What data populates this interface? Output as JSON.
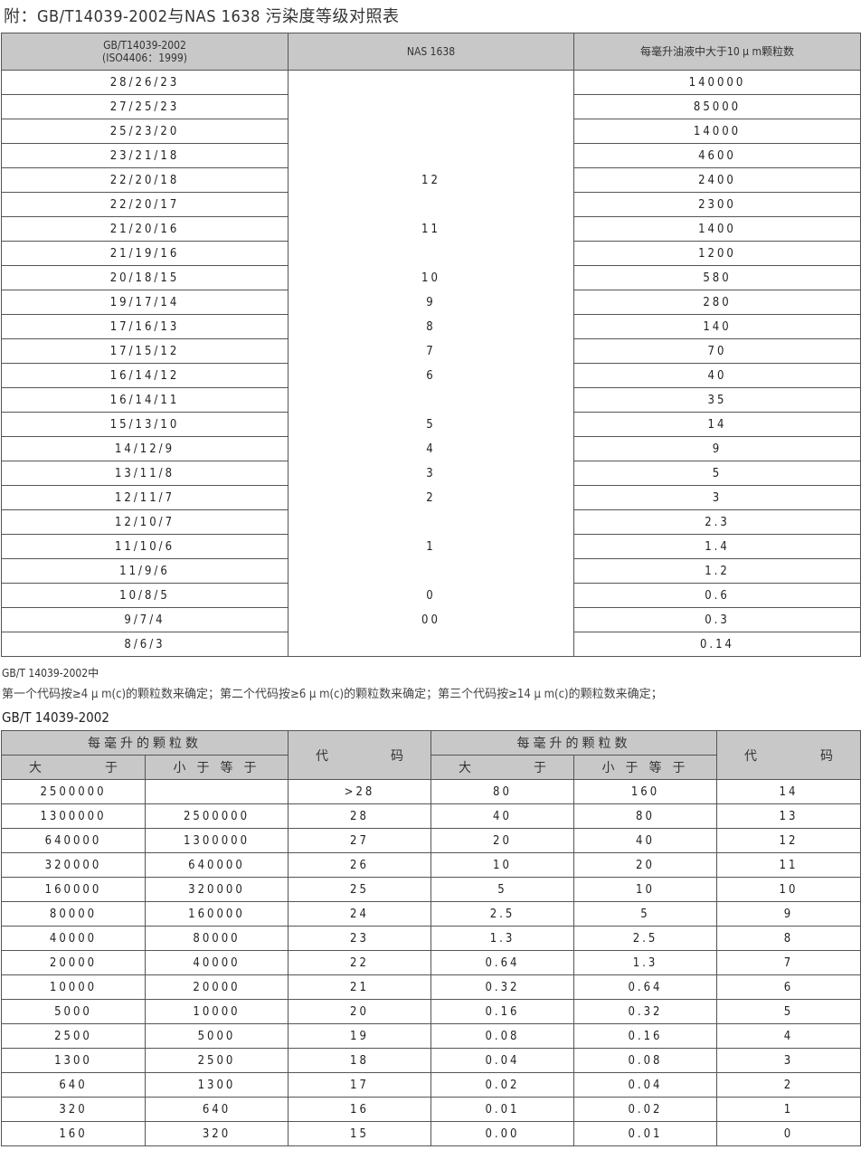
{
  "title": "附：GB/T14039-2002与NAS 1638 污染度等级对照表",
  "table1": {
    "headers": [
      "GB/T14039-2002",
      "(ISO4406：1999)",
      "NAS 1638",
      "每毫升油液中大于10 μ m颗粒数"
    ],
    "rows": [
      [
        "28/26/23",
        "",
        "140000"
      ],
      [
        "27/25/23",
        "",
        "85000"
      ],
      [
        "25/23/20",
        "",
        "14000"
      ],
      [
        "23/21/18",
        "",
        "4600"
      ],
      [
        "22/20/18",
        "12",
        "2400"
      ],
      [
        "22/20/17",
        "",
        "2300"
      ],
      [
        "21/20/16",
        "11",
        "1400"
      ],
      [
        "21/19/16",
        "",
        "1200"
      ],
      [
        "20/18/15",
        "10",
        "580"
      ],
      [
        "19/17/14",
        "9",
        "280"
      ],
      [
        "17/16/13",
        "8",
        "140"
      ],
      [
        "17/15/12",
        "7",
        "70"
      ],
      [
        "16/14/12",
        "6",
        "40"
      ],
      [
        "16/14/11",
        "",
        "35"
      ],
      [
        "15/13/10",
        "5",
        "14"
      ],
      [
        "14/12/9",
        "4",
        "9"
      ],
      [
        "13/11/8",
        "3",
        "5"
      ],
      [
        "12/11/7",
        "2",
        "3"
      ],
      [
        "12/10/7",
        "",
        "2.3"
      ],
      [
        "11/10/6",
        "1",
        "1.4"
      ],
      [
        "11/9/6",
        "",
        "1.2"
      ],
      [
        "10/8/5",
        "0",
        "0.6"
      ],
      [
        "9/7/4",
        "00",
        "0.3"
      ],
      [
        "8/6/3",
        "",
        "0.14"
      ]
    ]
  },
  "note_line1": "GB/T 14039-2002中",
  "note_line2": "第一个代码按≥4 μ m(c)的颗粒数来确定；第二个代码按≥6 μ m(c)的颗粒数来确定；第三个代码按≥14 μ m(c)的颗粒数来确定；",
  "table2": {
    "title": "GB/T 14039-2002",
    "group_header": "每毫升的颗粒数",
    "code_a": "代",
    "code_b": "码",
    "gt_a": "大",
    "gt_b": "于",
    "le": "小 于 等 于",
    "rows": [
      [
        "2500000",
        "",
        ">28",
        "80",
        "160",
        "14"
      ],
      [
        "1300000",
        "2500000",
        "28",
        "40",
        "80",
        "13"
      ],
      [
        "640000",
        "1300000",
        "27",
        "20",
        "40",
        "12"
      ],
      [
        "320000",
        "640000",
        "26",
        "10",
        "20",
        "11"
      ],
      [
        "160000",
        "320000",
        "25",
        "5",
        "10",
        "10"
      ],
      [
        "80000",
        "160000",
        "24",
        "2.5",
        "5",
        "9"
      ],
      [
        "40000",
        "80000",
        "23",
        "1.3",
        "2.5",
        "8"
      ],
      [
        "20000",
        "40000",
        "22",
        "0.64",
        "1.3",
        "7"
      ],
      [
        "10000",
        "20000",
        "21",
        "0.32",
        "0.64",
        "6"
      ],
      [
        "5000",
        "10000",
        "20",
        "0.16",
        "0.32",
        "5"
      ],
      [
        "2500",
        "5000",
        "19",
        "0.08",
        "0.16",
        "4"
      ],
      [
        "1300",
        "2500",
        "18",
        "0.04",
        "0.08",
        "3"
      ],
      [
        "640",
        "1300",
        "17",
        "0.02",
        "0.04",
        "2"
      ],
      [
        "320",
        "640",
        "16",
        "0.01",
        "0.02",
        "1"
      ],
      [
        "160",
        "320",
        "15",
        "0.00",
        "0.01",
        "0"
      ]
    ]
  }
}
